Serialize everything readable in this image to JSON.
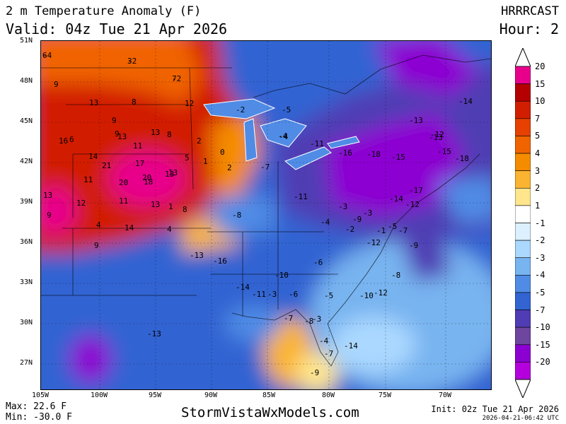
{
  "header": {
    "title": "2 m Temperature Anomaly (F)",
    "valid": "Valid: 04z Tue 21 Apr 2026",
    "model": "HRRRCAST",
    "hour": "Hour: 2"
  },
  "footer": {
    "max": "Max: 22.6 F",
    "min": "Min: -30.0 F",
    "site": "StormVistaWxModels.com",
    "init": "Init: 02z Tue 21 Apr 2026",
    "stamp": "2026-04-21-06:42 UTC"
  },
  "lat_labels": [
    "51N",
    "48N",
    "45N",
    "42N",
    "39N",
    "36N",
    "33N",
    "30N",
    "27N"
  ],
  "lon_labels": [
    "105W",
    "100W",
    "95W",
    "90W",
    "85W",
    "80W",
    "75W",
    "70W"
  ],
  "colorbar": {
    "labels": [
      "20",
      "15",
      "10",
      "7",
      "5",
      "4",
      "3",
      "2",
      "1",
      "-1",
      "-2",
      "-3",
      "-4",
      "-5",
      "-7",
      "-10",
      "-15",
      "-20"
    ],
    "colors": [
      "#e8008c",
      "#b40000",
      "#d21e00",
      "#e64100",
      "#f06400",
      "#f58c00",
      "#fab432",
      "#ffe68c",
      "#ffffff",
      "#dcf0ff",
      "#aad8ff",
      "#78b4f0",
      "#508ce6",
      "#3264d2",
      "#503cb4",
      "#6e46a0",
      "#8c00d2",
      "#b400dc"
    ]
  },
  "anomaly_values": [
    "6",
    "3",
    "7",
    "9",
    "13",
    "8",
    "12",
    "9",
    "13",
    "6",
    "16",
    "9",
    "13",
    "8",
    "2",
    "14",
    "11",
    "17",
    "13",
    "21",
    "20",
    "5",
    "1",
    "0",
    "2",
    "13",
    "11",
    "20",
    "18",
    "13",
    "12",
    "11",
    "13",
    "8",
    "9",
    "4",
    "14",
    "4",
    "1",
    "9",
    "-2",
    "-5",
    "-4",
    "-11",
    "-16",
    "-18",
    "-15",
    "-14",
    "-13",
    "-12",
    "-7",
    "-4",
    "-11",
    "-3",
    "-9",
    "-14",
    "-17",
    "-12",
    "-15",
    "-18",
    "-13",
    "-8",
    "-4",
    "-2",
    "-3",
    "-1",
    "-5",
    "-12",
    "-7",
    "-9",
    "-8",
    "-6",
    "-10",
    "-16",
    "-13",
    "-14",
    "-11",
    "-3",
    "-6",
    "-7",
    "-8",
    "-5",
    "-10",
    "-12",
    "-3",
    "-4",
    "-7",
    "-9",
    "-14",
    "-13",
    "-4",
    "-2",
    "-2"
  ],
  "map_colors": {
    "hot": "#e8008c",
    "warm": "#d21e00",
    "orange": "#f06400",
    "cool": "#3264d2",
    "cold": "#503cb4",
    "purple": "#8c00d2"
  }
}
